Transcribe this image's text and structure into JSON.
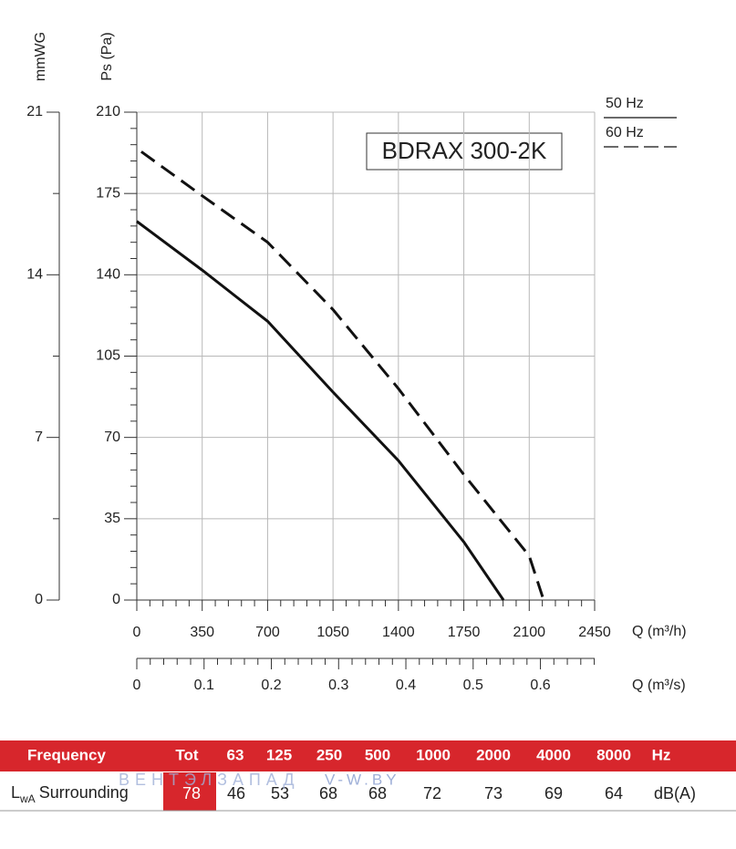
{
  "chart_data": {
    "type": "line",
    "title": "BDRAX 300-2K",
    "x_label": "Q (m³/h)",
    "y_label": "Ps (Pa)",
    "y2_label": "mmWG",
    "x2_label": "Q (m³/s)",
    "xlim": [
      0,
      2450
    ],
    "xticks": [
      0,
      350,
      700,
      1050,
      1400,
      1750,
      2100,
      2450
    ],
    "x2lim": [
      0,
      0.6806
    ],
    "x2ticks": [
      0,
      0.1,
      0.2,
      0.3,
      0.4,
      0.5,
      0.6
    ],
    "ylim": [
      0,
      210
    ],
    "yticks": [
      0,
      35,
      70,
      105,
      140,
      175,
      210
    ],
    "y2lim": [
      0,
      21
    ],
    "y2ticks": [
      0,
      7,
      14,
      21
    ],
    "grid": true,
    "series": [
      {
        "name": "50 Hz",
        "color": "#111111",
        "dashed": false,
        "x": [
          0,
          350,
          700,
          1050,
          1400,
          1750,
          1962
        ],
        "values": [
          163,
          142,
          120,
          89.5,
          60,
          25,
          0
        ]
      },
      {
        "name": "60 Hz",
        "color": "#111111",
        "dashed": true,
        "x": [
          24,
          350,
          700,
          1050,
          1400,
          1750,
          2100,
          2177
        ],
        "values": [
          193,
          174,
          154,
          125,
          91,
          54,
          19,
          0
        ]
      }
    ]
  },
  "table": {
    "header": [
      "Frequency",
      "Tot",
      "63",
      "125",
      "250",
      "500",
      "1000",
      "2000",
      "4000",
      "8000",
      "Hz"
    ],
    "row": {
      "label": [
        "L",
        "wA",
        "Surrounding"
      ],
      "values": [
        78,
        46,
        53,
        68,
        68,
        72,
        73,
        69,
        64
      ],
      "unit": "dB(A)"
    }
  },
  "watermark": [
    "ВЕНТЭЛЗАПАД",
    "V-W.BY"
  ]
}
